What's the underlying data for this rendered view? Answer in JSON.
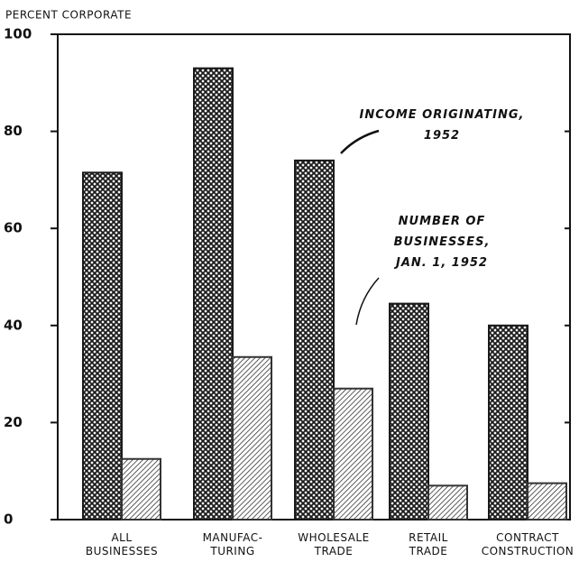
{
  "chart_data": {
    "type": "bar",
    "y_label": "PERCENT CORPORATE",
    "categories": [
      "ALL\nBUSINESSES",
      "MANUFAC-\nTURING",
      "WHOLESALE\nTRADE",
      "RETAIL\nTRADE",
      "CONTRACT\nCONSTRUCTION"
    ],
    "series": [
      {
        "name": "INCOME ORIGINATING,\n1952",
        "color": "#1a1a1a",
        "values": [
          71.5,
          93,
          74,
          44.5,
          40
        ]
      },
      {
        "name": "NUMBER OF\nBUSINESSES,\nJAN. 1, 1952",
        "color": "#333333",
        "values": [
          12.5,
          33.5,
          27,
          7,
          7.5
        ]
      }
    ],
    "ylim": [
      0,
      100
    ],
    "yticks": [
      0,
      20,
      40,
      60,
      80,
      100
    ]
  }
}
